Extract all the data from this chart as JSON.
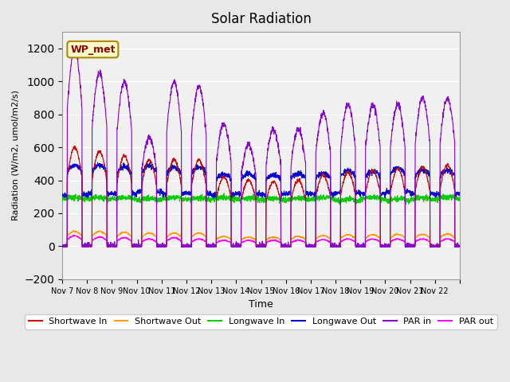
{
  "title": "Solar Radiation",
  "ylabel": "Radiation (W/m2, umol/m2/s)",
  "xlabel": "Time",
  "station_label": "WP_met",
  "ylim": [
    -200,
    1300
  ],
  "yticks": [
    -200,
    0,
    200,
    400,
    600,
    800,
    1000,
    1200
  ],
  "num_days": 16,
  "start_day": 7,
  "end_day": 22,
  "background_color": "#e8e8e8",
  "plot_bg_color": "#f0f0f0",
  "series": {
    "shortwave_in": {
      "color": "#cc0000",
      "label": "Shortwave In"
    },
    "shortwave_out": {
      "color": "#ff9900",
      "label": "Shortwave Out"
    },
    "longwave_in": {
      "color": "#00cc00",
      "label": "Longwave In"
    },
    "longwave_out": {
      "color": "#0000cc",
      "label": "Longwave Out"
    },
    "par_in": {
      "color": "#8800cc",
      "label": "PAR in"
    },
    "par_out": {
      "color": "#ff00ff",
      "label": "PAR out"
    }
  },
  "day_peaks": {
    "sw_in": [
      600,
      575,
      550,
      525,
      525,
      525,
      420,
      400,
      390,
      400,
      430,
      450,
      460,
      470,
      480,
      490
    ],
    "sw_out": [
      90,
      90,
      85,
      80,
      80,
      80,
      60,
      55,
      55,
      60,
      65,
      70,
      70,
      72,
      73,
      74
    ],
    "par_in": [
      1200,
      1050,
      1000,
      660,
      1000,
      970,
      740,
      620,
      710,
      710,
      810,
      860,
      860,
      860,
      900,
      900
    ],
    "par_out": [
      80,
      70,
      65,
      55,
      65,
      55,
      45,
      45,
      45,
      45,
      50,
      55,
      55,
      55,
      55,
      55
    ]
  },
  "lw_in_base": 285,
  "lw_in_variation": 30,
  "lw_out_base": 320,
  "lw_out_variation": 80,
  "night_sw": -5,
  "night_par_in": -5,
  "night_par_out": -5,
  "pts_per_day": 144
}
